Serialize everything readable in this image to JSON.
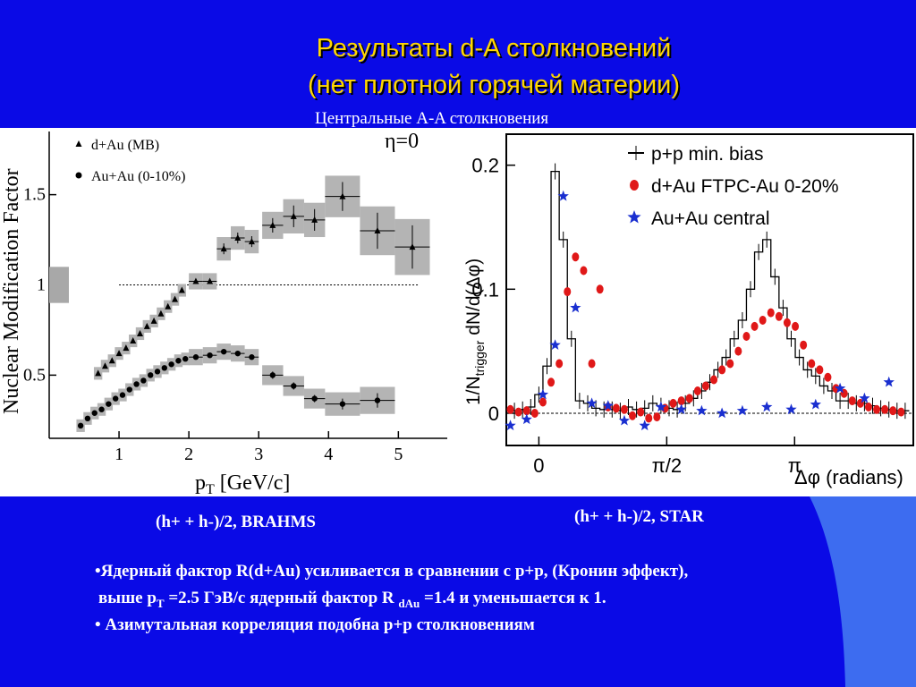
{
  "slide": {
    "title_line1": "Результаты d-A столкновений",
    "title_line2": "(нет плотной горячей материи)",
    "subtitle": "Центральные A-A столкновения",
    "caption_left": "(h+ + h-)/2, BRAHMS",
    "caption_right": "(h+ + h-)/2, STAR",
    "bullet1": "•Ядерный фактор R(d+Au) усиливается в сравнении с p+p, (Кронин эффект),",
    "bullet2_a": "выше p",
    "bullet2_sub1": "T",
    "bullet2_b": " =2.5 ГэВ/с  ядерный фактор R ",
    "bullet2_sub2": "dAu",
    "bullet2_c": " =1.4 и уменьшается к 1.",
    "bullet3": "• Азимутальная корреляция подобна p+p столкновениям",
    "colors": {
      "background": "#0a0ae6",
      "title": "#ffd700",
      "text": "#ffffff",
      "stripe": "#3d6cf0"
    }
  },
  "chart_data": [
    {
      "type": "scatter",
      "ylabel": "Nuclear Modification Factor",
      "xlabel": "p",
      "xlabel_sub": "T",
      "xlabel_unit": " [GeV/c]",
      "annotation": "η=0",
      "xlim": [
        0,
        5.7
      ],
      "ylim": [
        0.15,
        1.85
      ],
      "xticks": [
        1,
        2,
        3,
        4,
        5
      ],
      "xtick_labels": [
        "1",
        "2",
        "3",
        "4",
        "5"
      ],
      "yticks": [
        0.5,
        1,
        1.5
      ],
      "ytick_labels": [
        "0.5",
        "1",
        "1.5"
      ],
      "reference_line": 1,
      "legend_placement": "top-left",
      "series": [
        {
          "name": "d+Au (MB)",
          "marker": "triangle",
          "x": [
            0.7,
            0.8,
            0.9,
            1.0,
            1.1,
            1.2,
            1.3,
            1.4,
            1.5,
            1.6,
            1.7,
            1.8,
            1.9,
            2.1,
            2.3,
            2.5,
            2.7,
            2.9,
            3.2,
            3.5,
            3.8,
            4.2,
            4.7,
            5.2
          ],
          "y": [
            0.51,
            0.55,
            0.58,
            0.62,
            0.65,
            0.69,
            0.73,
            0.77,
            0.8,
            0.84,
            0.88,
            0.92,
            0.97,
            1.02,
            1.02,
            1.2,
            1.26,
            1.24,
            1.33,
            1.38,
            1.36,
            1.49,
            1.3,
            1.21
          ],
          "xerr": [
            0,
            0,
            0,
            0,
            0,
            0,
            0,
            0,
            0,
            0,
            0,
            0,
            0,
            0.1,
            0.1,
            0.1,
            0.1,
            0.1,
            0.15,
            0.15,
            0.15,
            0.25,
            0.25,
            0.25
          ],
          "yerr": [
            0,
            0,
            0,
            0,
            0,
            0,
            0,
            0,
            0,
            0,
            0,
            0,
            0,
            0.01,
            0.01,
            0.03,
            0.03,
            0.03,
            0.04,
            0.06,
            0.06,
            0.08,
            0.1,
            0.12
          ]
        },
        {
          "name": "Au+Au (0-10%)",
          "marker": "circle",
          "x": [
            0.45,
            0.55,
            0.65,
            0.75,
            0.85,
            0.95,
            1.05,
            1.15,
            1.25,
            1.35,
            1.45,
            1.55,
            1.65,
            1.75,
            1.85,
            1.95,
            2.1,
            2.3,
            2.5,
            2.7,
            2.9,
            3.2,
            3.5,
            3.8,
            4.2,
            4.7
          ],
          "y": [
            0.22,
            0.26,
            0.29,
            0.31,
            0.34,
            0.37,
            0.39,
            0.42,
            0.45,
            0.47,
            0.5,
            0.52,
            0.54,
            0.56,
            0.58,
            0.59,
            0.6,
            0.61,
            0.63,
            0.62,
            0.6,
            0.5,
            0.44,
            0.37,
            0.34,
            0.36
          ],
          "xerr": [
            0,
            0,
            0,
            0,
            0,
            0,
            0,
            0,
            0,
            0,
            0,
            0,
            0,
            0,
            0,
            0,
            0.1,
            0.1,
            0.1,
            0.1,
            0.1,
            0.15,
            0.15,
            0.15,
            0.25,
            0.25
          ],
          "yerr": [
            0,
            0,
            0,
            0,
            0,
            0,
            0,
            0,
            0,
            0,
            0,
            0,
            0,
            0,
            0,
            0,
            0.01,
            0.01,
            0.01,
            0.01,
            0.01,
            0.02,
            0.02,
            0.02,
            0.03,
            0.04
          ]
        }
      ]
    },
    {
      "type": "scatter",
      "ylabel": "1/N",
      "ylabel_sub": "trigger",
      "ylabel_rest": " dN/d(Δφ)",
      "xlabel": "Δφ (radians)",
      "xlim": [
        -0.4,
        4.6
      ],
      "ylim": [
        -0.026,
        0.225
      ],
      "xticks": [
        0,
        1.5708,
        3.1416
      ],
      "xtick_labels": [
        "0",
        "π/2",
        "π"
      ],
      "yticks": [
        0,
        0.1,
        0.2
      ],
      "ytick_labels": [
        "0",
        "0.1",
        "0.2"
      ],
      "reference_line": 0,
      "legend_placement": "top-right",
      "series": [
        {
          "name": "p+p min. bias",
          "marker": "step",
          "x": [
            -0.3,
            -0.2,
            -0.1,
            0.0,
            0.1,
            0.2,
            0.3,
            0.4,
            0.5,
            0.6,
            0.7,
            0.8,
            0.9,
            1.0,
            1.1,
            1.2,
            1.3,
            1.4,
            1.5,
            1.6,
            1.7,
            1.8,
            1.9,
            2.0,
            2.1,
            2.2,
            2.3,
            2.4,
            2.5,
            2.6,
            2.7,
            2.8,
            2.9,
            3.0,
            3.1,
            3.2,
            3.3,
            3.4,
            3.5,
            3.6,
            3.7,
            3.8,
            3.9,
            4.0,
            4.1,
            4.2,
            4.3,
            4.4,
            4.5
          ],
          "y": [
            0.002,
            0.003,
            0.005,
            0.015,
            0.038,
            0.195,
            0.14,
            0.06,
            0.01,
            0.008,
            0.004,
            0.003,
            0.003,
            0.002,
            0.005,
            0.003,
            0.004,
            0.008,
            0.006,
            0.004,
            0.003,
            0.008,
            0.012,
            0.018,
            0.025,
            0.035,
            0.045,
            0.06,
            0.075,
            0.1,
            0.13,
            0.14,
            0.11,
            0.085,
            0.06,
            0.045,
            0.035,
            0.03,
            0.022,
            0.018,
            0.01,
            0.01,
            0.008,
            0.008,
            0.006,
            0.004,
            0.003,
            0.002,
            0.002
          ]
        },
        {
          "name": "d+Au FTPC-Au 0-20%",
          "marker": "circle",
          "x": [
            -0.35,
            -0.25,
            -0.15,
            -0.05,
            0.05,
            0.15,
            0.25,
            0.35,
            0.45,
            0.55,
            0.65,
            0.75,
            0.85,
            0.95,
            1.05,
            1.15,
            1.25,
            1.35,
            1.45,
            1.55,
            1.65,
            1.75,
            1.85,
            1.95,
            2.05,
            2.15,
            2.25,
            2.35,
            2.45,
            2.55,
            2.65,
            2.75,
            2.85,
            2.95,
            3.05,
            3.15,
            3.25,
            3.35,
            3.45,
            3.55,
            3.65,
            3.75,
            3.85,
            3.95,
            4.05,
            4.15,
            4.25,
            4.35,
            4.45
          ],
          "y": [
            0.003,
            0.001,
            0.002,
            0.0,
            0.009,
            0.025,
            0.04,
            0.098,
            0.126,
            0.115,
            0.04,
            0.1,
            0.005,
            0.004,
            0.003,
            -0.002,
            0.001,
            -0.004,
            -0.003,
            0.004,
            0.008,
            0.01,
            0.012,
            0.018,
            0.022,
            0.027,
            0.035,
            0.04,
            0.05,
            0.062,
            0.07,
            0.075,
            0.081,
            0.078,
            0.073,
            0.07,
            0.055,
            0.04,
            0.035,
            0.029,
            0.02,
            0.016,
            0.01,
            0.008,
            0.005,
            0.003,
            0.003,
            0.002,
            0.001
          ]
        },
        {
          "name": "Au+Au central",
          "marker": "star",
          "x": [
            -0.35,
            -0.15,
            0.05,
            0.2,
            0.3,
            0.45,
            0.65,
            0.85,
            1.05,
            1.3,
            1.5,
            1.75,
            2.0,
            2.25,
            2.5,
            2.8,
            3.1,
            3.4,
            3.7,
            4.0,
            4.3
          ],
          "y": [
            -0.01,
            -0.005,
            0.015,
            0.055,
            0.175,
            0.085,
            0.008,
            0.006,
            -0.006,
            -0.01,
            0.005,
            0.003,
            0.002,
            0.0,
            0.002,
            0.005,
            0.003,
            0.007,
            0.02,
            0.012,
            0.025
          ]
        }
      ]
    }
  ]
}
